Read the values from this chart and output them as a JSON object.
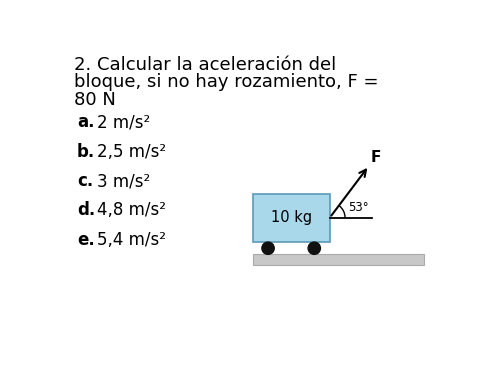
{
  "title_line1": "2. Calcular la aceleración del",
  "title_line2": "bloque, si no hay rozamiento, F =",
  "title_line3": "80 N",
  "options": [
    {
      "label": "a.",
      "text": "2 m/s²"
    },
    {
      "label": "b.",
      "text": "2,5 m/s²"
    },
    {
      "label": "c.",
      "text": "3 m/s²"
    },
    {
      "label": "d.",
      "text": "4,8 m/s²"
    },
    {
      "label": "e.",
      "text": "5,4 m/s²"
    }
  ],
  "bg_color": "#ffffff",
  "text_color": "#000000",
  "box_color": "#a8d8ea",
  "box_edge_color": "#5a9ab8",
  "ground_color": "#c8c8c8",
  "ground_edge_color": "#aaaaaa",
  "wheel_color": "#111111",
  "arrow_color": "#000000",
  "angle_label": "53°",
  "force_label": "F",
  "mass_label": "10 kg"
}
